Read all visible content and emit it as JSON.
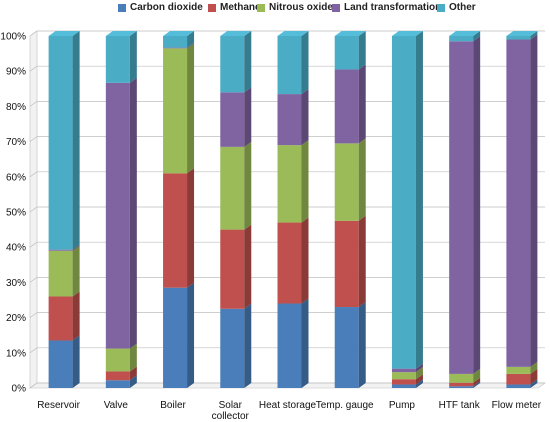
{
  "chart_data": {
    "type": "bar",
    "stacked": true,
    "percent": true,
    "three_d": true,
    "categories": [
      "Reservoir",
      "Valve",
      "Boiler",
      "Solar collector",
      "Heat storage",
      "Temp. gauge",
      "Pump",
      "HTF tank",
      "Flow meter"
    ],
    "y_ticks": [
      "0%",
      "10%",
      "20%",
      "30%",
      "40%",
      "50%",
      "60%",
      "70%",
      "80%",
      "90%",
      "100%"
    ],
    "ylim": [
      0,
      100
    ],
    "grid": true,
    "legend_position": "top",
    "series": [
      {
        "name": "Carbon dioxide",
        "color": "#4a7ebb",
        "values": [
          13.5,
          2.2,
          28.5,
          22.5,
          24.0,
          23.0,
          1.0,
          0.5,
          1.0
        ]
      },
      {
        "name": "Methane",
        "color": "#c0504d",
        "values": [
          12.5,
          2.5,
          32.5,
          22.5,
          23.0,
          24.5,
          1.5,
          1.0,
          3.0
        ]
      },
      {
        "name": "Nitrous oxide",
        "color": "#9bbb59",
        "values": [
          13.0,
          6.5,
          35.5,
          23.5,
          22.0,
          22.0,
          2.0,
          2.5,
          2.0
        ]
      },
      {
        "name": "Land transformation",
        "color": "#8064a2",
        "values": [
          0.3,
          75.5,
          0.2,
          15.5,
          14.5,
          21.0,
          1.0,
          94.5,
          93.0
        ]
      },
      {
        "name": "Other",
        "color": "#4bacc6",
        "values": [
          60.7,
          13.3,
          3.3,
          16.0,
          16.5,
          9.5,
          94.5,
          1.5,
          1.0
        ]
      }
    ]
  },
  "x_labels": [
    {
      "lines": [
        "Reservoir"
      ]
    },
    {
      "lines": [
        "Valve"
      ]
    },
    {
      "lines": [
        "Boiler"
      ]
    },
    {
      "lines": [
        "Solar",
        "collector"
      ]
    },
    {
      "lines": [
        "Heat storage"
      ]
    },
    {
      "lines": [
        "Temp. gauge"
      ]
    },
    {
      "lines": [
        "Pump"
      ]
    },
    {
      "lines": [
        "HTF tank"
      ]
    },
    {
      "lines": [
        "Flow meter"
      ]
    }
  ]
}
